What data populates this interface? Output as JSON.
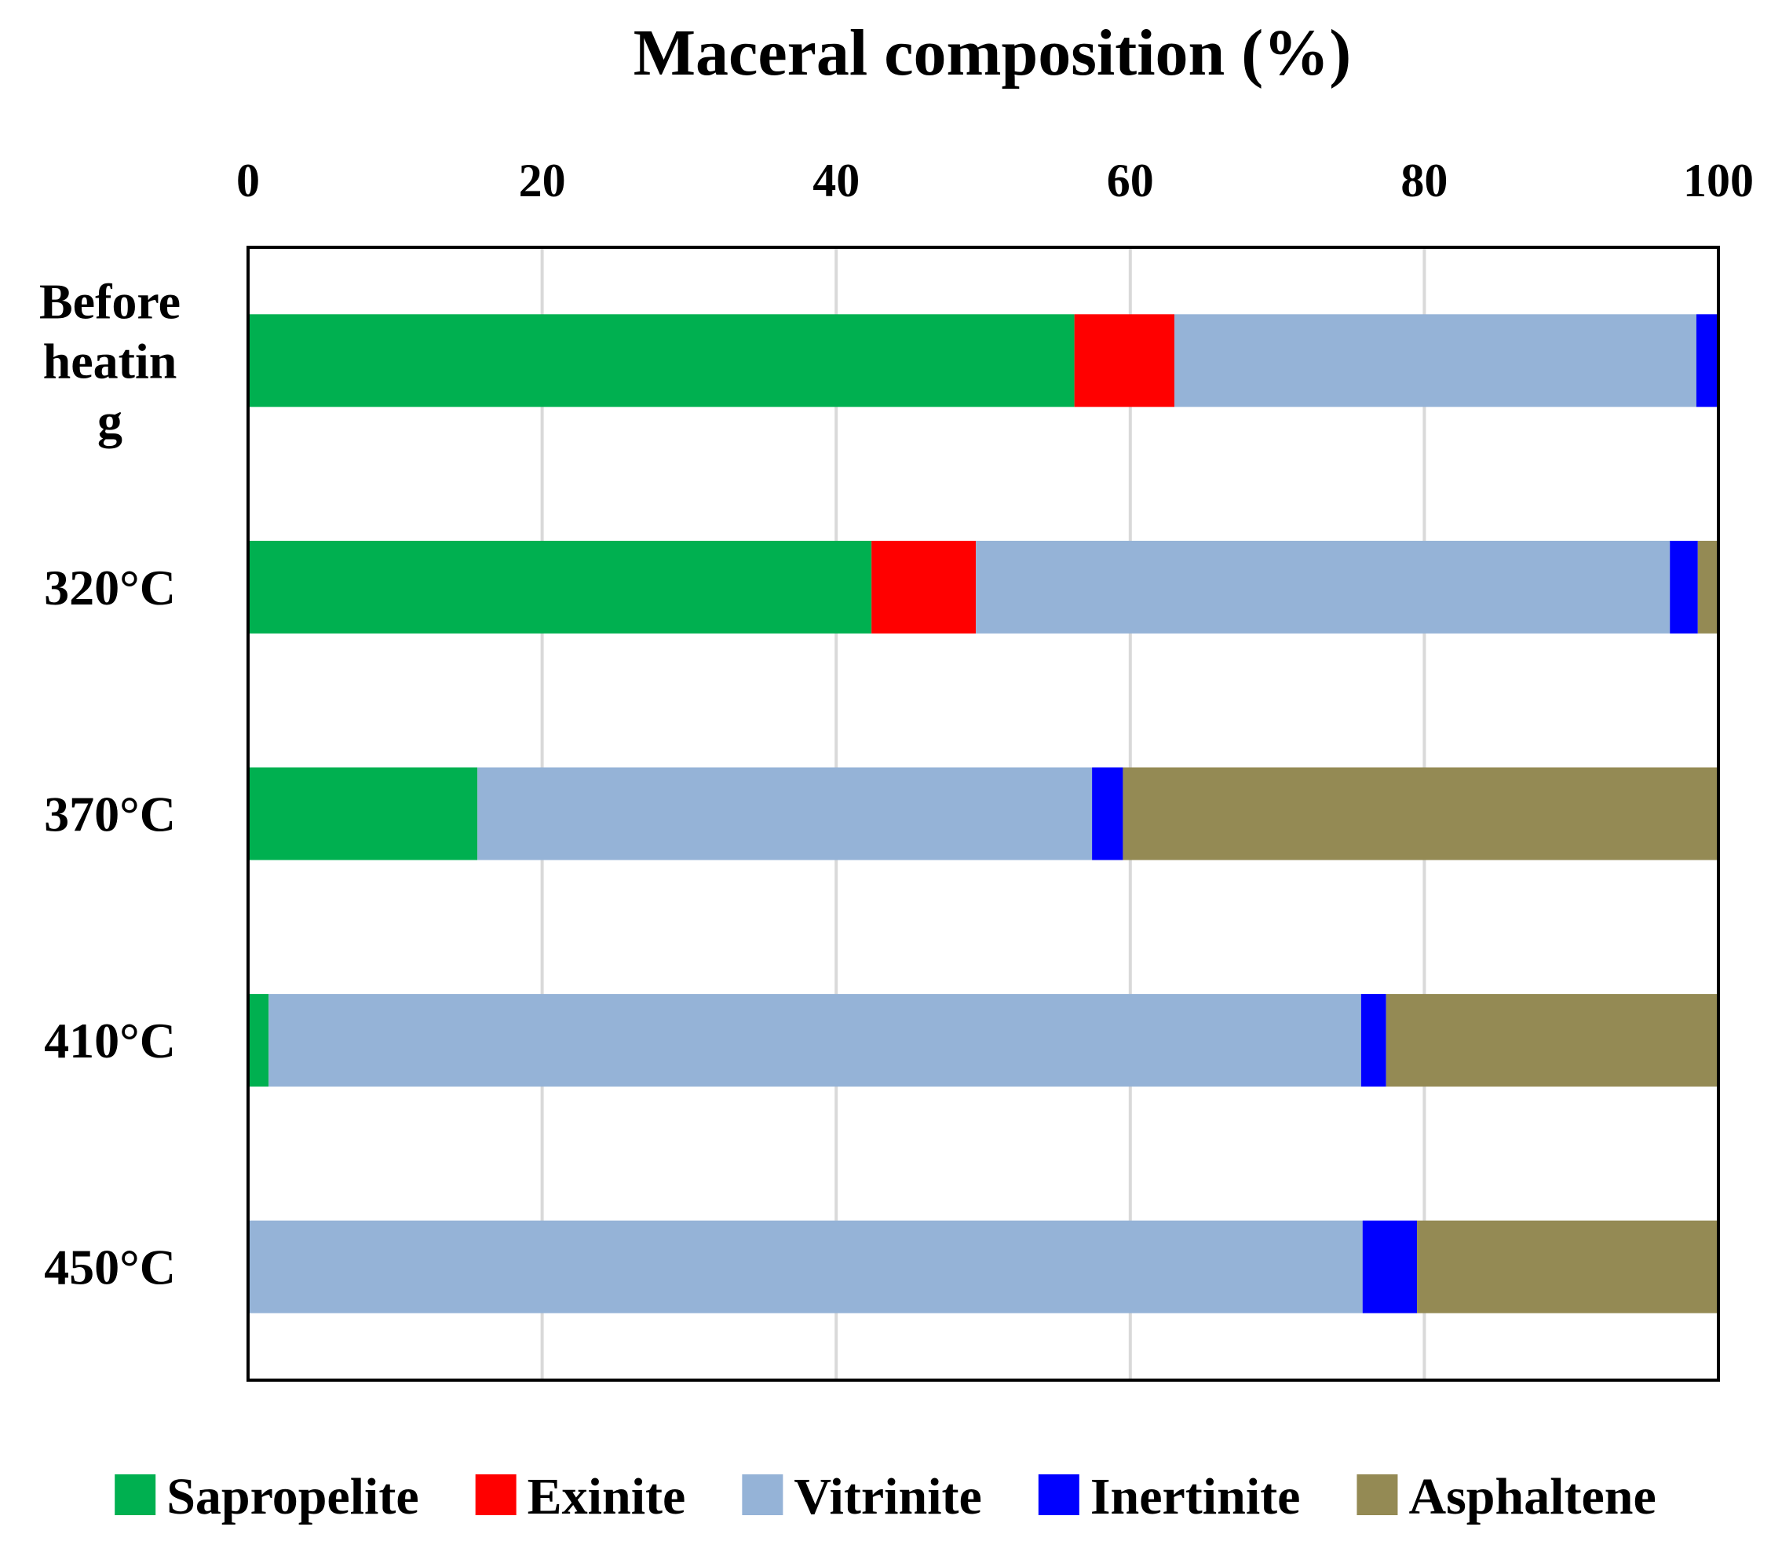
{
  "chart_data": {
    "type": "bar",
    "orientation": "horizontal",
    "stacked": true,
    "title": "Maceral composition (%)",
    "categories": [
      [
        "Before",
        "heatin",
        "g"
      ],
      [
        "320°C"
      ],
      [
        "370°C"
      ],
      [
        "410°C"
      ],
      [
        "450°C"
      ]
    ],
    "xlim": [
      0,
      100
    ],
    "xticks": [
      0,
      20,
      40,
      60,
      80,
      100
    ],
    "x_axis_position": "top",
    "grid": "vertical",
    "legend_position": "bottom",
    "series": [
      {
        "name": "Sapropelite",
        "color": "#00b050",
        "values": [
          56.2,
          42.4,
          15.6,
          1.4,
          0.0
        ]
      },
      {
        "name": "Exinite",
        "color": "#ff0000",
        "values": [
          6.8,
          7.1,
          0.0,
          0.0,
          0.0
        ]
      },
      {
        "name": "Vitrinite",
        "color": "#95b3d7",
        "values": [
          35.5,
          47.2,
          41.8,
          74.3,
          75.8
        ]
      },
      {
        "name": "Inertinite",
        "color": "#0000ff",
        "values": [
          1.5,
          1.9,
          2.1,
          1.7,
          3.7
        ]
      },
      {
        "name": "Asphaltene",
        "color": "#948a54",
        "values": [
          0.0,
          1.4,
          40.5,
          22.6,
          20.5
        ]
      }
    ]
  }
}
